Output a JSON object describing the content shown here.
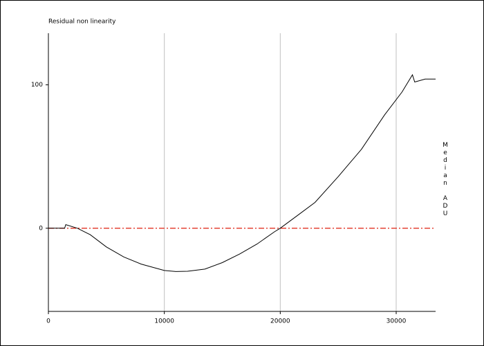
{
  "chart_data": {
    "type": "line",
    "title": "Residual non linearity",
    "y_label": "Median ADU",
    "x": [
      0,
      1400,
      1500,
      2500,
      3600,
      5000,
      6500,
      8000,
      10000,
      11000,
      12000,
      13500,
      15000,
      16500,
      18000,
      19500,
      20000,
      21500,
      23000,
      25000,
      27000,
      29000,
      30500,
      31400,
      31600,
      32500,
      33400
    ],
    "series": [
      {
        "name": "Residual",
        "color": "#000000",
        "values": [
          0,
          0,
          2.5,
          0,
          -4.5,
          -13,
          -20,
          -25,
          -29.5,
          -30.2,
          -30,
          -28.5,
          -24,
          -18,
          -11,
          -2.5,
          0,
          9,
          18,
          36,
          55,
          79,
          95,
          107,
          102,
          104,
          104
        ]
      }
    ],
    "reference_line": {
      "value": 0,
      "color": "#e03020"
    },
    "xlim": [
      0,
      33400
    ],
    "xticks": [
      0,
      10000,
      20000,
      30000
    ],
    "ylim": [
      -58,
      136
    ],
    "yticks": [
      0,
      100
    ],
    "grid": "x"
  }
}
